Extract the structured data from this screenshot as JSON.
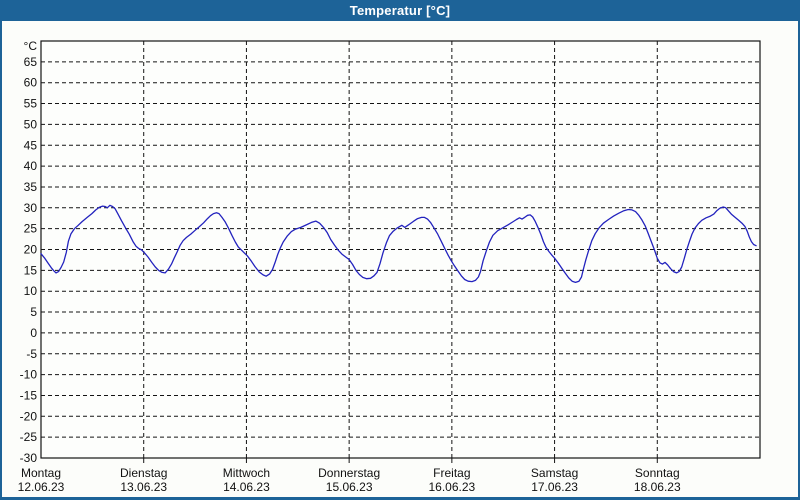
{
  "window": {
    "title": "Temperatur [°C]"
  },
  "colors": {
    "titlebar_bg": "#1d6398",
    "title_text": "#ffffff",
    "window_border": "#1d6398",
    "window_bg": "#fcfdfa",
    "plot_bg": "#fdfefc",
    "grid": "#141414",
    "axis_text": "#111111",
    "line": "#2323be"
  },
  "chart_data": {
    "type": "line",
    "title": "Temperatur [°C]",
    "y_unit": "°C",
    "ylim": [
      -30,
      70
    ],
    "y_ticks": [
      65,
      60,
      55,
      50,
      45,
      40,
      35,
      30,
      25,
      20,
      15,
      10,
      5,
      0,
      -5,
      -10,
      -15,
      -20,
      -25,
      -30
    ],
    "grid_style": "dashed",
    "legend": "none",
    "x_hours_total": 168,
    "x_days": [
      {
        "name": "Montag",
        "date": "12.06.23"
      },
      {
        "name": "Dienstag",
        "date": "13.06.23"
      },
      {
        "name": "Mittwoch",
        "date": "14.06.23"
      },
      {
        "name": "Donnerstag",
        "date": "15.06.23"
      },
      {
        "name": "Freitag",
        "date": "16.06.23"
      },
      {
        "name": "Samstag",
        "date": "17.06.23"
      },
      {
        "name": "Sonntag",
        "date": "18.06.23"
      }
    ],
    "series": [
      {
        "name": "Temperatur",
        "unit": "°C",
        "points": [
          [
            0,
            19.0
          ],
          [
            0.8,
            18.0
          ],
          [
            1.6,
            16.8
          ],
          [
            2.4,
            15.6
          ],
          [
            3.0,
            14.9
          ],
          [
            3.5,
            14.4
          ],
          [
            4.1,
            14.7
          ],
          [
            4.7,
            15.7
          ],
          [
            5.3,
            17.0
          ],
          [
            5.9,
            19.3
          ],
          [
            6.4,
            22.0
          ],
          [
            7.0,
            23.8
          ],
          [
            7.8,
            25.0
          ],
          [
            8.6,
            25.7
          ],
          [
            9.6,
            26.7
          ],
          [
            10.8,
            27.7
          ],
          [
            11.9,
            28.6
          ],
          [
            12.8,
            29.5
          ],
          [
            13.6,
            30.1
          ],
          [
            14.4,
            30.4
          ],
          [
            15.0,
            30.3
          ],
          [
            15.5,
            30.0
          ],
          [
            16.1,
            30.6
          ],
          [
            16.7,
            30.3
          ],
          [
            17.3,
            29.8
          ],
          [
            18.0,
            28.5
          ],
          [
            18.8,
            26.9
          ],
          [
            19.8,
            25.1
          ],
          [
            20.6,
            23.7
          ],
          [
            21.5,
            21.9
          ],
          [
            22.2,
            20.8
          ],
          [
            22.9,
            20.2
          ],
          [
            23.5,
            19.9
          ],
          [
            24.1,
            19.3
          ],
          [
            25.0,
            18.2
          ],
          [
            25.9,
            16.9
          ],
          [
            26.7,
            15.8
          ],
          [
            27.5,
            15.0
          ],
          [
            28.3,
            14.5
          ],
          [
            29.0,
            14.4
          ],
          [
            29.8,
            15.3
          ],
          [
            30.5,
            16.5
          ],
          [
            31.1,
            17.9
          ],
          [
            31.8,
            19.4
          ],
          [
            32.5,
            21.0
          ],
          [
            33.2,
            22.1
          ],
          [
            34.0,
            22.9
          ],
          [
            35.0,
            23.7
          ],
          [
            36.0,
            24.6
          ],
          [
            37.0,
            25.5
          ],
          [
            38.0,
            26.4
          ],
          [
            38.9,
            27.4
          ],
          [
            39.6,
            28.1
          ],
          [
            40.3,
            28.6
          ],
          [
            41.0,
            28.8
          ],
          [
            41.6,
            28.6
          ],
          [
            42.3,
            27.7
          ],
          [
            43.0,
            26.7
          ],
          [
            43.8,
            25.1
          ],
          [
            44.6,
            23.4
          ],
          [
            45.4,
            21.8
          ],
          [
            46.1,
            20.6
          ],
          [
            46.9,
            19.8
          ],
          [
            47.6,
            19.1
          ],
          [
            48.2,
            18.5
          ],
          [
            49.0,
            17.4
          ],
          [
            50.0,
            15.9
          ],
          [
            51.0,
            14.6
          ],
          [
            51.9,
            13.9
          ],
          [
            52.6,
            13.6
          ],
          [
            53.4,
            14.1
          ],
          [
            54.1,
            15.2
          ],
          [
            54.7,
            16.9
          ],
          [
            55.3,
            18.8
          ],
          [
            55.9,
            20.3
          ],
          [
            56.6,
            21.8
          ],
          [
            57.5,
            23.2
          ],
          [
            58.5,
            24.3
          ],
          [
            59.5,
            24.9
          ],
          [
            60.7,
            25.3
          ],
          [
            62.0,
            25.9
          ],
          [
            63.2,
            26.5
          ],
          [
            64.2,
            26.8
          ],
          [
            65.1,
            26.3
          ],
          [
            66.0,
            25.3
          ],
          [
            66.9,
            24.0
          ],
          [
            67.7,
            22.4
          ],
          [
            68.6,
            21.0
          ],
          [
            69.4,
            19.9
          ],
          [
            70.3,
            18.9
          ],
          [
            71.2,
            18.2
          ],
          [
            72.0,
            17.6
          ],
          [
            72.8,
            16.4
          ],
          [
            73.6,
            15.0
          ],
          [
            74.4,
            14.0
          ],
          [
            75.2,
            13.3
          ],
          [
            76.1,
            13.0
          ],
          [
            77.0,
            13.1
          ],
          [
            77.8,
            13.7
          ],
          [
            78.5,
            14.5
          ],
          [
            79.2,
            16.6
          ],
          [
            79.9,
            19.2
          ],
          [
            80.7,
            21.6
          ],
          [
            81.4,
            23.3
          ],
          [
            82.3,
            24.4
          ],
          [
            83.3,
            25.2
          ],
          [
            84.3,
            25.8
          ],
          [
            85.0,
            25.3
          ],
          [
            85.6,
            25.7
          ],
          [
            86.3,
            26.2
          ],
          [
            87.1,
            26.8
          ],
          [
            88.0,
            27.4
          ],
          [
            88.9,
            27.7
          ],
          [
            89.6,
            27.7
          ],
          [
            90.3,
            27.3
          ],
          [
            91.0,
            26.5
          ],
          [
            91.8,
            25.2
          ],
          [
            92.7,
            23.7
          ],
          [
            93.5,
            22.0
          ],
          [
            94.3,
            20.3
          ],
          [
            95.1,
            18.7
          ],
          [
            95.8,
            17.4
          ],
          [
            96.6,
            16.1
          ],
          [
            97.4,
            14.9
          ],
          [
            98.2,
            13.7
          ],
          [
            99.0,
            12.8
          ],
          [
            99.8,
            12.4
          ],
          [
            100.7,
            12.3
          ],
          [
            101.5,
            12.6
          ],
          [
            102.2,
            13.4
          ],
          [
            102.7,
            14.7
          ],
          [
            103.3,
            17.3
          ],
          [
            104.1,
            19.8
          ],
          [
            104.8,
            21.8
          ],
          [
            105.6,
            23.4
          ],
          [
            106.7,
            24.5
          ],
          [
            107.9,
            25.2
          ],
          [
            109.1,
            25.9
          ],
          [
            110.2,
            26.6
          ],
          [
            111.1,
            27.2
          ],
          [
            111.8,
            27.6
          ],
          [
            112.4,
            27.3
          ],
          [
            113.0,
            27.7
          ],
          [
            113.7,
            28.2
          ],
          [
            114.3,
            28.3
          ],
          [
            114.9,
            27.8
          ],
          [
            115.5,
            26.7
          ],
          [
            116.2,
            25.1
          ],
          [
            116.8,
            23.6
          ],
          [
            117.4,
            21.9
          ],
          [
            118.0,
            20.5
          ],
          [
            118.7,
            19.5
          ],
          [
            119.4,
            18.6
          ],
          [
            120.1,
            17.8
          ],
          [
            120.9,
            16.7
          ],
          [
            121.7,
            15.5
          ],
          [
            122.5,
            14.3
          ],
          [
            123.3,
            13.2
          ],
          [
            124.1,
            12.4
          ],
          [
            124.9,
            12.1
          ],
          [
            125.7,
            12.4
          ],
          [
            126.3,
            13.4
          ],
          [
            126.7,
            15.1
          ],
          [
            127.3,
            17.5
          ],
          [
            128.0,
            19.9
          ],
          [
            128.7,
            22.1
          ],
          [
            129.5,
            23.8
          ],
          [
            130.4,
            25.2
          ],
          [
            131.4,
            26.3
          ],
          [
            132.6,
            27.2
          ],
          [
            133.8,
            28.0
          ],
          [
            135.0,
            28.7
          ],
          [
            136.2,
            29.3
          ],
          [
            137.2,
            29.6
          ],
          [
            138.1,
            29.5
          ],
          [
            138.9,
            29.1
          ],
          [
            139.6,
            28.3
          ],
          [
            140.4,
            27.1
          ],
          [
            141.2,
            25.6
          ],
          [
            141.9,
            23.8
          ],
          [
            142.6,
            21.9
          ],
          [
            143.3,
            20.0
          ],
          [
            144.0,
            17.9
          ],
          [
            144.6,
            16.8
          ],
          [
            145.2,
            16.5
          ],
          [
            145.8,
            16.9
          ],
          [
            146.4,
            16.3
          ],
          [
            147.1,
            15.4
          ],
          [
            147.8,
            14.7
          ],
          [
            148.5,
            14.4
          ],
          [
            149.1,
            14.7
          ],
          [
            149.7,
            15.8
          ],
          [
            150.3,
            17.8
          ],
          [
            150.9,
            20.0
          ],
          [
            151.5,
            21.9
          ],
          [
            152.1,
            23.7
          ],
          [
            152.8,
            25.1
          ],
          [
            153.6,
            26.2
          ],
          [
            154.4,
            27.0
          ],
          [
            155.4,
            27.6
          ],
          [
            156.4,
            28.0
          ],
          [
            157.2,
            28.5
          ],
          [
            157.9,
            29.3
          ],
          [
            158.6,
            29.9
          ],
          [
            159.4,
            30.2
          ],
          [
            160.0,
            30.0
          ],
          [
            160.6,
            29.3
          ],
          [
            161.3,
            28.5
          ],
          [
            162.1,
            27.8
          ],
          [
            163.0,
            27.0
          ],
          [
            163.8,
            26.3
          ],
          [
            164.5,
            25.5
          ],
          [
            165.0,
            24.4
          ],
          [
            165.5,
            23.0
          ],
          [
            166.0,
            21.9
          ],
          [
            166.5,
            21.2
          ],
          [
            167.1,
            20.9
          ]
        ]
      }
    ]
  }
}
